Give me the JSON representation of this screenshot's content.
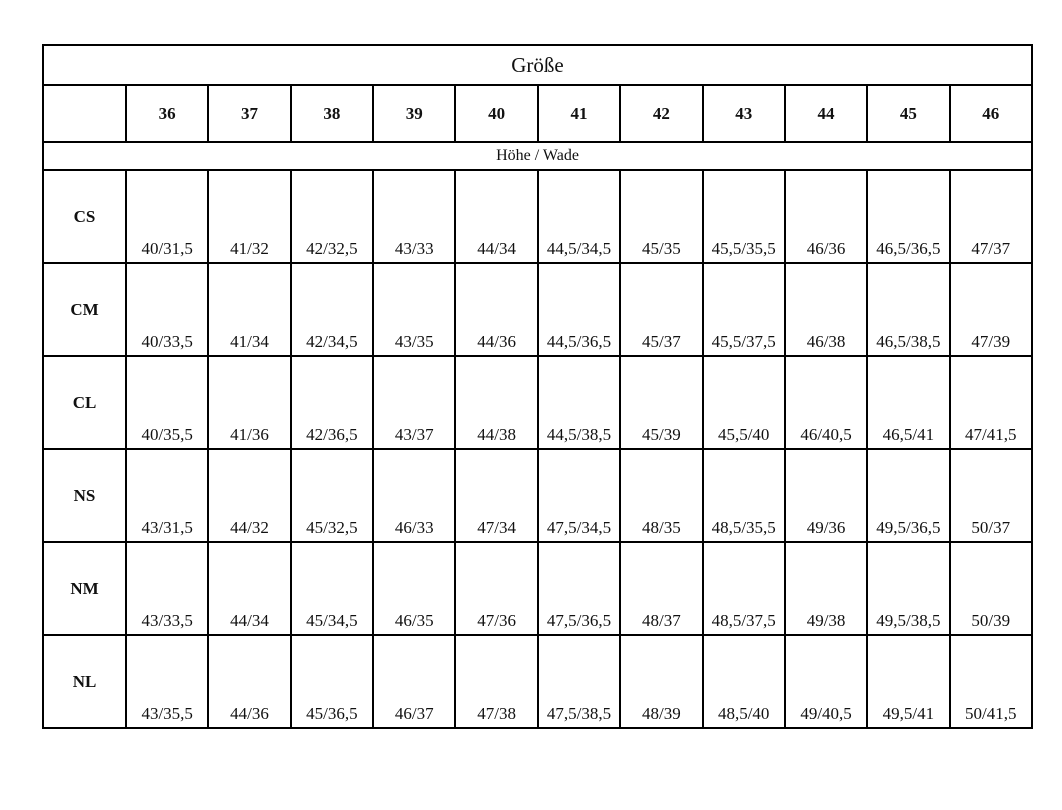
{
  "title": "Größe",
  "sizes": [
    "36",
    "37",
    "38",
    "39",
    "40",
    "41",
    "42",
    "43",
    "44",
    "45",
    "46"
  ],
  "subtitle": "Höhe / Wade",
  "rows": [
    {
      "label": "CS",
      "values": [
        "40/31,5",
        "41/32",
        "42/32,5",
        "43/33",
        "44/34",
        "44,5/34,5",
        "45/35",
        "45,5/35,5",
        "46/36",
        "46,5/36,5",
        "47/37"
      ]
    },
    {
      "label": "CM",
      "values": [
        "40/33,5",
        "41/34",
        "42/34,5",
        "43/35",
        "44/36",
        "44,5/36,5",
        "45/37",
        "45,5/37,5",
        "46/38",
        "46,5/38,5",
        "47/39"
      ]
    },
    {
      "label": "CL",
      "values": [
        "40/35,5",
        "41/36",
        "42/36,5",
        "43/37",
        "44/38",
        "44,5/38,5",
        "45/39",
        "45,5/40",
        "46/40,5",
        "46,5/41",
        "47/41,5"
      ]
    },
    {
      "label": "NS",
      "values": [
        "43/31,5",
        "44/32",
        "45/32,5",
        "46/33",
        "47/34",
        "47,5/34,5",
        "48/35",
        "48,5/35,5",
        "49/36",
        "49,5/36,5",
        "50/37"
      ]
    },
    {
      "label": "NM",
      "values": [
        "43/33,5",
        "44/34",
        "45/34,5",
        "46/35",
        "47/36",
        "47,5/36,5",
        "48/37",
        "48,5/37,5",
        "49/38",
        "49,5/38,5",
        "50/39"
      ]
    },
    {
      "label": "NL",
      "values": [
        "43/35,5",
        "44/36",
        "45/36,5",
        "46/37",
        "47/38",
        "47,5/38,5",
        "48/39",
        "48,5/40",
        "49/40,5",
        "49,5/41",
        "50/41,5"
      ]
    }
  ]
}
